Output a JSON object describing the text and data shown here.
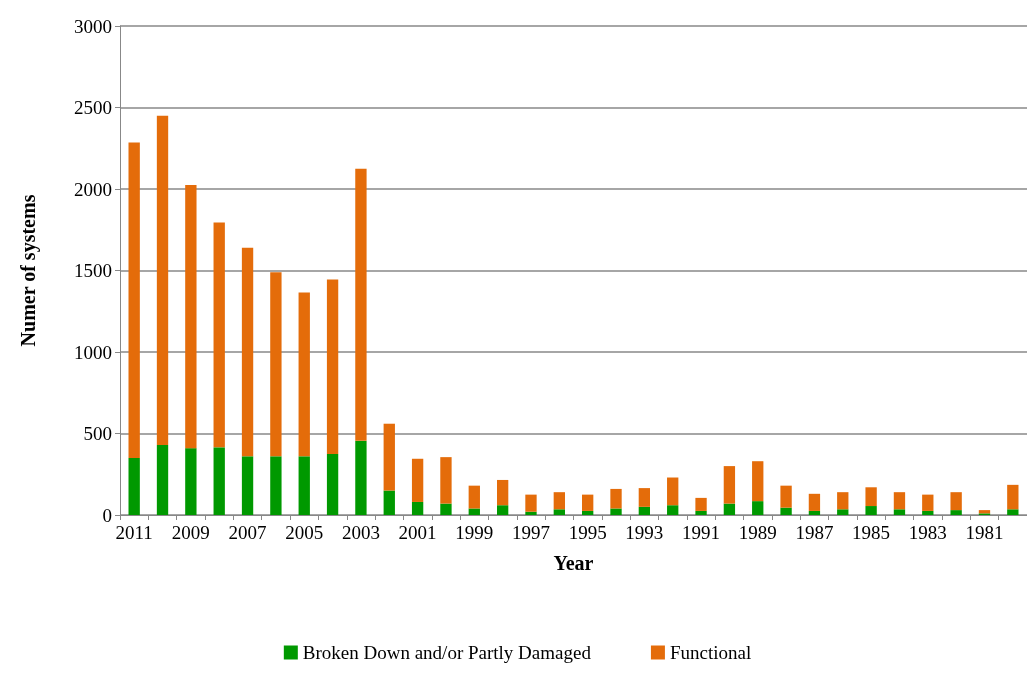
{
  "chart_data": {
    "type": "bar",
    "stacked": true,
    "xlabel": "Year",
    "ylabel": "Numer of systems",
    "categories": [
      "2011",
      null,
      "2009",
      null,
      "2007",
      null,
      "2005",
      null,
      "2003",
      null,
      "2001",
      null,
      "1999",
      null,
      "1997",
      null,
      "1995",
      null,
      "1993",
      null,
      "1991",
      null,
      "1989",
      null,
      "1987",
      null,
      "1985",
      null,
      "1983",
      null,
      "1981",
      null
    ],
    "series": [
      {
        "name": "Broken Down and/or Partly Damaged",
        "color": "#009900",
        "values": [
          350,
          430,
          410,
          415,
          360,
          360,
          360,
          375,
          455,
          150,
          80,
          70,
          40,
          60,
          20,
          35,
          25,
          40,
          50,
          60,
          25,
          70,
          85,
          45,
          25,
          35,
          55,
          35,
          25,
          30,
          10,
          35
        ]
      },
      {
        "name": "Functional",
        "color": "#e46c0a",
        "values": [
          1935,
          2020,
          1615,
          1380,
          1280,
          1130,
          1005,
          1070,
          1670,
          410,
          265,
          285,
          140,
          155,
          105,
          105,
          100,
          120,
          115,
          170,
          80,
          230,
          245,
          135,
          105,
          105,
          115,
          105,
          100,
          110,
          20,
          150
        ]
      }
    ],
    "ylim": [
      0,
      3000
    ],
    "yticks": [
      0,
      500,
      1000,
      1500,
      2000,
      2500,
      3000
    ],
    "grid": "y",
    "legend": "bottom"
  }
}
